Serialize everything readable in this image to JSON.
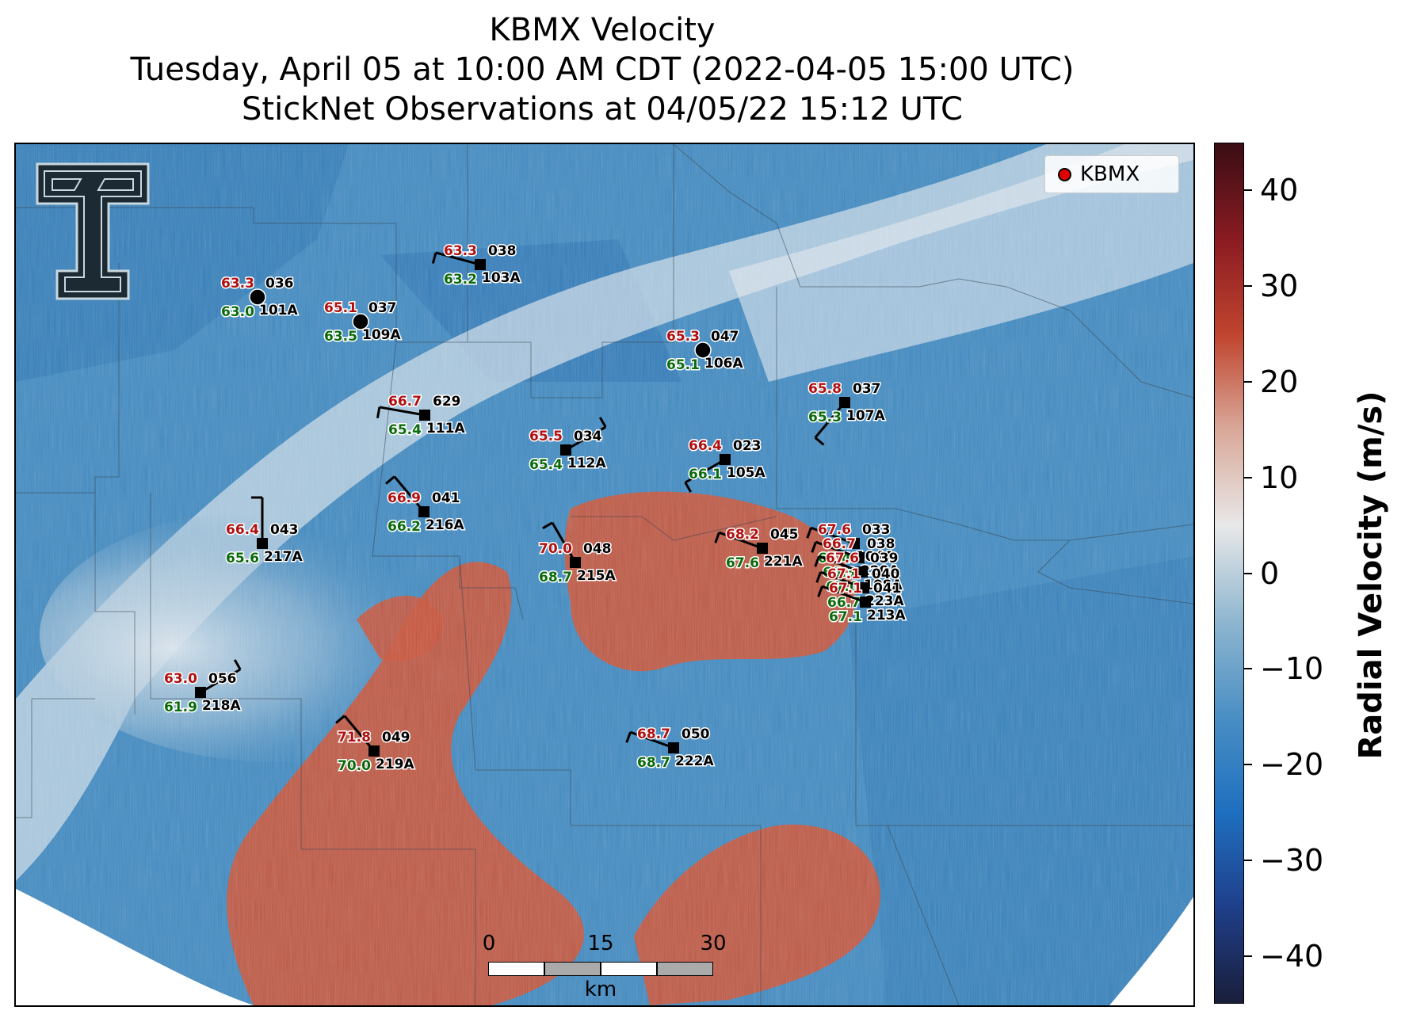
{
  "title": {
    "line1": "KBMX Velocity",
    "line2": "Tuesday, April 05 at 10:00 AM CDT (2022-04-05 15:00 UTC)",
    "line3": "StickNet Observations at 04/05/22 15:12 UTC"
  },
  "legend": {
    "label": "KBMX",
    "marker_color": "#e00000"
  },
  "colorbar": {
    "label": "Radial Velocity (m/s)",
    "ticks": [
      "40",
      "30",
      "20",
      "10",
      "0",
      "−10",
      "−20",
      "−30",
      "−40"
    ],
    "range": [
      -45,
      45
    ],
    "colors": [
      "#1a1e3a",
      "#1f3f8a",
      "#1f6fc0",
      "#4a8fc4",
      "#8fb6cf",
      "#e8e8e8",
      "#d9a899",
      "#c0442e",
      "#8a1b22",
      "#3a0d14"
    ]
  },
  "scale_bar": {
    "labels": [
      "0",
      "15",
      "30"
    ],
    "unit": "km"
  },
  "stations": [
    {
      "id": "101A",
      "temp": "63.3",
      "dew": "63.0",
      "pres": "036",
      "marker": "circle"
    },
    {
      "id": "109A",
      "temp": "65.1",
      "dew": "63.5",
      "pres": "037",
      "marker": "circle"
    },
    {
      "id": "103A",
      "temp": "63.3",
      "dew": "63.2",
      "pres": "038",
      "marker": "square"
    },
    {
      "id": "106A",
      "temp": "65.3",
      "dew": "65.1",
      "pres": "047",
      "marker": "circle"
    },
    {
      "id": "107A",
      "temp": "65.8",
      "dew": "65.3",
      "pres": "037",
      "marker": "square"
    },
    {
      "id": "111A",
      "temp": "66.7",
      "dew": "65.4",
      "pres": "629",
      "marker": "square"
    },
    {
      "id": "112A",
      "temp": "65.5",
      "dew": "65.4",
      "pres": "034",
      "marker": "square"
    },
    {
      "id": "105A",
      "temp": "66.4",
      "dew": "66.1",
      "pres": "023",
      "marker": "square"
    },
    {
      "id": "216A",
      "temp": "66.9",
      "dew": "66.2",
      "pres": "041",
      "marker": "square"
    },
    {
      "id": "217A",
      "temp": "66.4",
      "dew": "65.6",
      "pres": "043",
      "marker": "square"
    },
    {
      "id": "215A",
      "temp": "70.0",
      "dew": "68.7",
      "pres": "048",
      "marker": "square"
    },
    {
      "id": "221A",
      "temp": "68.2",
      "dew": "67.6",
      "pres": "045",
      "marker": "square"
    },
    {
      "id": "218A",
      "temp": "63.0",
      "dew": "61.9",
      "pres": "056",
      "marker": "square"
    },
    {
      "id": "219A",
      "temp": "71.8",
      "dew": "70.0",
      "pres": "049",
      "marker": "square"
    },
    {
      "id": "222A",
      "temp": "68.7",
      "dew": "68.7",
      "pres": "050",
      "marker": "square"
    },
    {
      "id": "104A",
      "temp": "67.6",
      "dew": "65.4",
      "pres": "033",
      "marker": "square"
    },
    {
      "id": "220A",
      "temp": "66.7",
      "dew": "66.3",
      "pres": "038",
      "marker": "square"
    },
    {
      "id": "108A",
      "temp": "67.6",
      "dew": "67.0",
      "pres": "039",
      "marker": "square"
    },
    {
      "id": "223A",
      "temp": "67.1",
      "dew": "66.7",
      "pres": "040",
      "marker": "square"
    },
    {
      "id": "213A",
      "temp": "67.1",
      "dew": "67.1",
      "pres": "041",
      "marker": "square"
    }
  ]
}
